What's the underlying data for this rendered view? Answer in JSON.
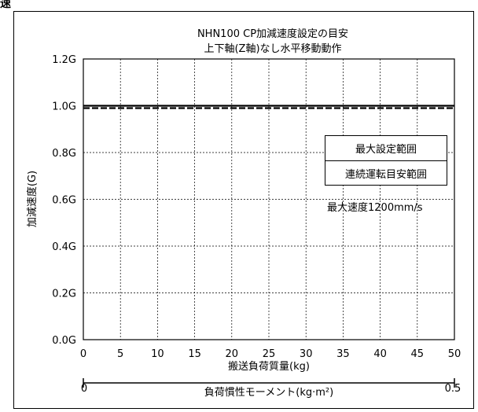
{
  "header_fragment": "速",
  "chart_data": {
    "type": "line",
    "title": "NHN100 CP加減速度設定の目安",
    "subtitle": "上下軸(Z軸)なし水平移動動作",
    "xlabel": "搬送負荷質量(kg)",
    "ylabel": "加減速度(G)",
    "xlim": [
      0,
      50
    ],
    "ylim": [
      0,
      1.2
    ],
    "x_ticks": [
      "0",
      "5",
      "10",
      "15",
      "20",
      "25",
      "30",
      "35",
      "40",
      "45",
      "50"
    ],
    "y_ticks": [
      "0.0G",
      "0.2G",
      "0.4G",
      "0.6G",
      "0.8G",
      "1.0G",
      "1.2G"
    ],
    "grid": true,
    "series": [
      {
        "name": "最大設定範囲",
        "style": "solid",
        "x": [
          0,
          50
        ],
        "y": [
          1.0,
          1.0
        ]
      },
      {
        "name": "連続運転目安範囲",
        "style": "dashed",
        "x": [
          0,
          50
        ],
        "y": [
          0.99,
          0.99
        ]
      }
    ],
    "annotation": "最大速度1200mm/s",
    "secondary_axis": {
      "label": "負荷慣性モーメント(kg·m²)",
      "min_label": "0",
      "max_label": "0.5"
    }
  }
}
